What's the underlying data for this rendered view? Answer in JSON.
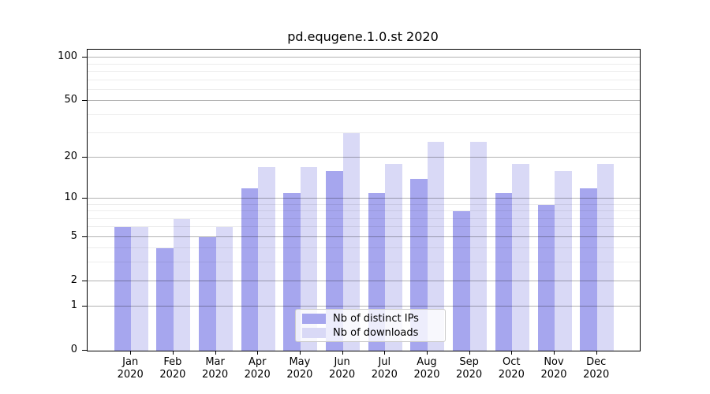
{
  "chart_data": {
    "type": "bar",
    "title": "pd.equgene.1.0.st 2020",
    "categories": [
      "Jan 2020",
      "Feb 2020",
      "Mar 2020",
      "Apr 2020",
      "May 2020",
      "Jun 2020",
      "Jul 2020",
      "Aug 2020",
      "Sep 2020",
      "Oct 2020",
      "Nov 2020",
      "Dec 2020"
    ],
    "month_labels": [
      "Jan",
      "Feb",
      "Mar",
      "Apr",
      "May",
      "Jun",
      "Jul",
      "Aug",
      "Sep",
      "Oct",
      "Nov",
      "Dec"
    ],
    "year_label": "2020",
    "series": [
      {
        "name": "Nb of distinct IPs",
        "key": "distinct-ips",
        "color": "#a6a6ee",
        "values": [
          6,
          4,
          5,
          12,
          11,
          16,
          11,
          14,
          8,
          11,
          9,
          12
        ]
      },
      {
        "name": "Nb of downloads",
        "key": "downloads",
        "color": "#d9d9f6",
        "values": [
          6,
          7,
          6,
          17,
          17,
          30,
          18,
          26,
          26,
          18,
          16,
          18
        ]
      }
    ],
    "y_scale": "log10(1+x)",
    "y_ticks": [
      0,
      1,
      2,
      5,
      10,
      20,
      50,
      100
    ],
    "y_minor_gridlines": [
      3,
      4,
      6,
      7,
      8,
      9,
      30,
      40,
      60,
      70,
      80,
      90
    ],
    "ylim": [
      0,
      114
    ],
    "xlabel": "",
    "ylabel": "",
    "grid": true,
    "legend_position": "bottom-center"
  },
  "colors": {
    "axis": "#000000",
    "major_gridline": "rgba(0,0,0,0.30)",
    "minor_gridline": "rgba(0,0,0,0.07)",
    "background": "#ffffff",
    "legend_border": "#cccccc",
    "legend_background": "rgba(255,255,255,0.8)"
  }
}
